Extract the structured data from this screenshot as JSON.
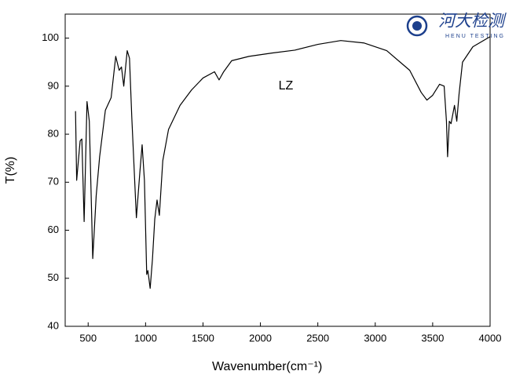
{
  "chart_data": {
    "type": "line",
    "xlabel": "Wavenumber(cm⁻¹)",
    "ylabel": "T(%)",
    "annotation": "LZ",
    "x": [
      390,
      400,
      430,
      445,
      465,
      490,
      510,
      540,
      570,
      600,
      650,
      700,
      740,
      770,
      790,
      810,
      840,
      860,
      880,
      920,
      950,
      970,
      990,
      1010,
      1020,
      1040,
      1060,
      1080,
      1100,
      1120,
      1150,
      1200,
      1300,
      1400,
      1500,
      1600,
      1640,
      1680,
      1750,
      1900,
      2100,
      2300,
      2500,
      2700,
      2900,
      3100,
      3300,
      3400,
      3450,
      3500,
      3560,
      3600,
      3620,
      3630,
      3645,
      3660,
      3690,
      3710,
      3730,
      3760,
      3850,
      4000
    ],
    "values": [
      84.8,
      70.4,
      78.6,
      79,
      61.8,
      86.8,
      82.7,
      54.1,
      67.2,
      75.3,
      85,
      87.6,
      96.2,
      93.3,
      94,
      90,
      97.4,
      95.8,
      83.5,
      62.6,
      72,
      77.8,
      70.4,
      50.8,
      51.6,
      47.9,
      54,
      62.3,
      66.3,
      63.1,
      74.5,
      81,
      86,
      89.2,
      91.7,
      93,
      91.3,
      93,
      95.3,
      96.2,
      96.9,
      97.5,
      98.7,
      99.5,
      99,
      97.4,
      93.3,
      88.7,
      87.1,
      88.1,
      90.4,
      90,
      82.7,
      75.3,
      82.7,
      82.2,
      86,
      82.7,
      88.4,
      95,
      98.2,
      100.3
    ],
    "color": "#000000",
    "xlim": [
      300,
      4000
    ],
    "ylim": [
      40,
      105
    ],
    "xticks": [
      500,
      1000,
      1500,
      2000,
      2500,
      3000,
      3500,
      4000
    ],
    "yticks": [
      40,
      50,
      60,
      70,
      80,
      90,
      100
    ]
  },
  "logo": {
    "name": "河大检测",
    "subtitle": "HENU TESTING"
  }
}
